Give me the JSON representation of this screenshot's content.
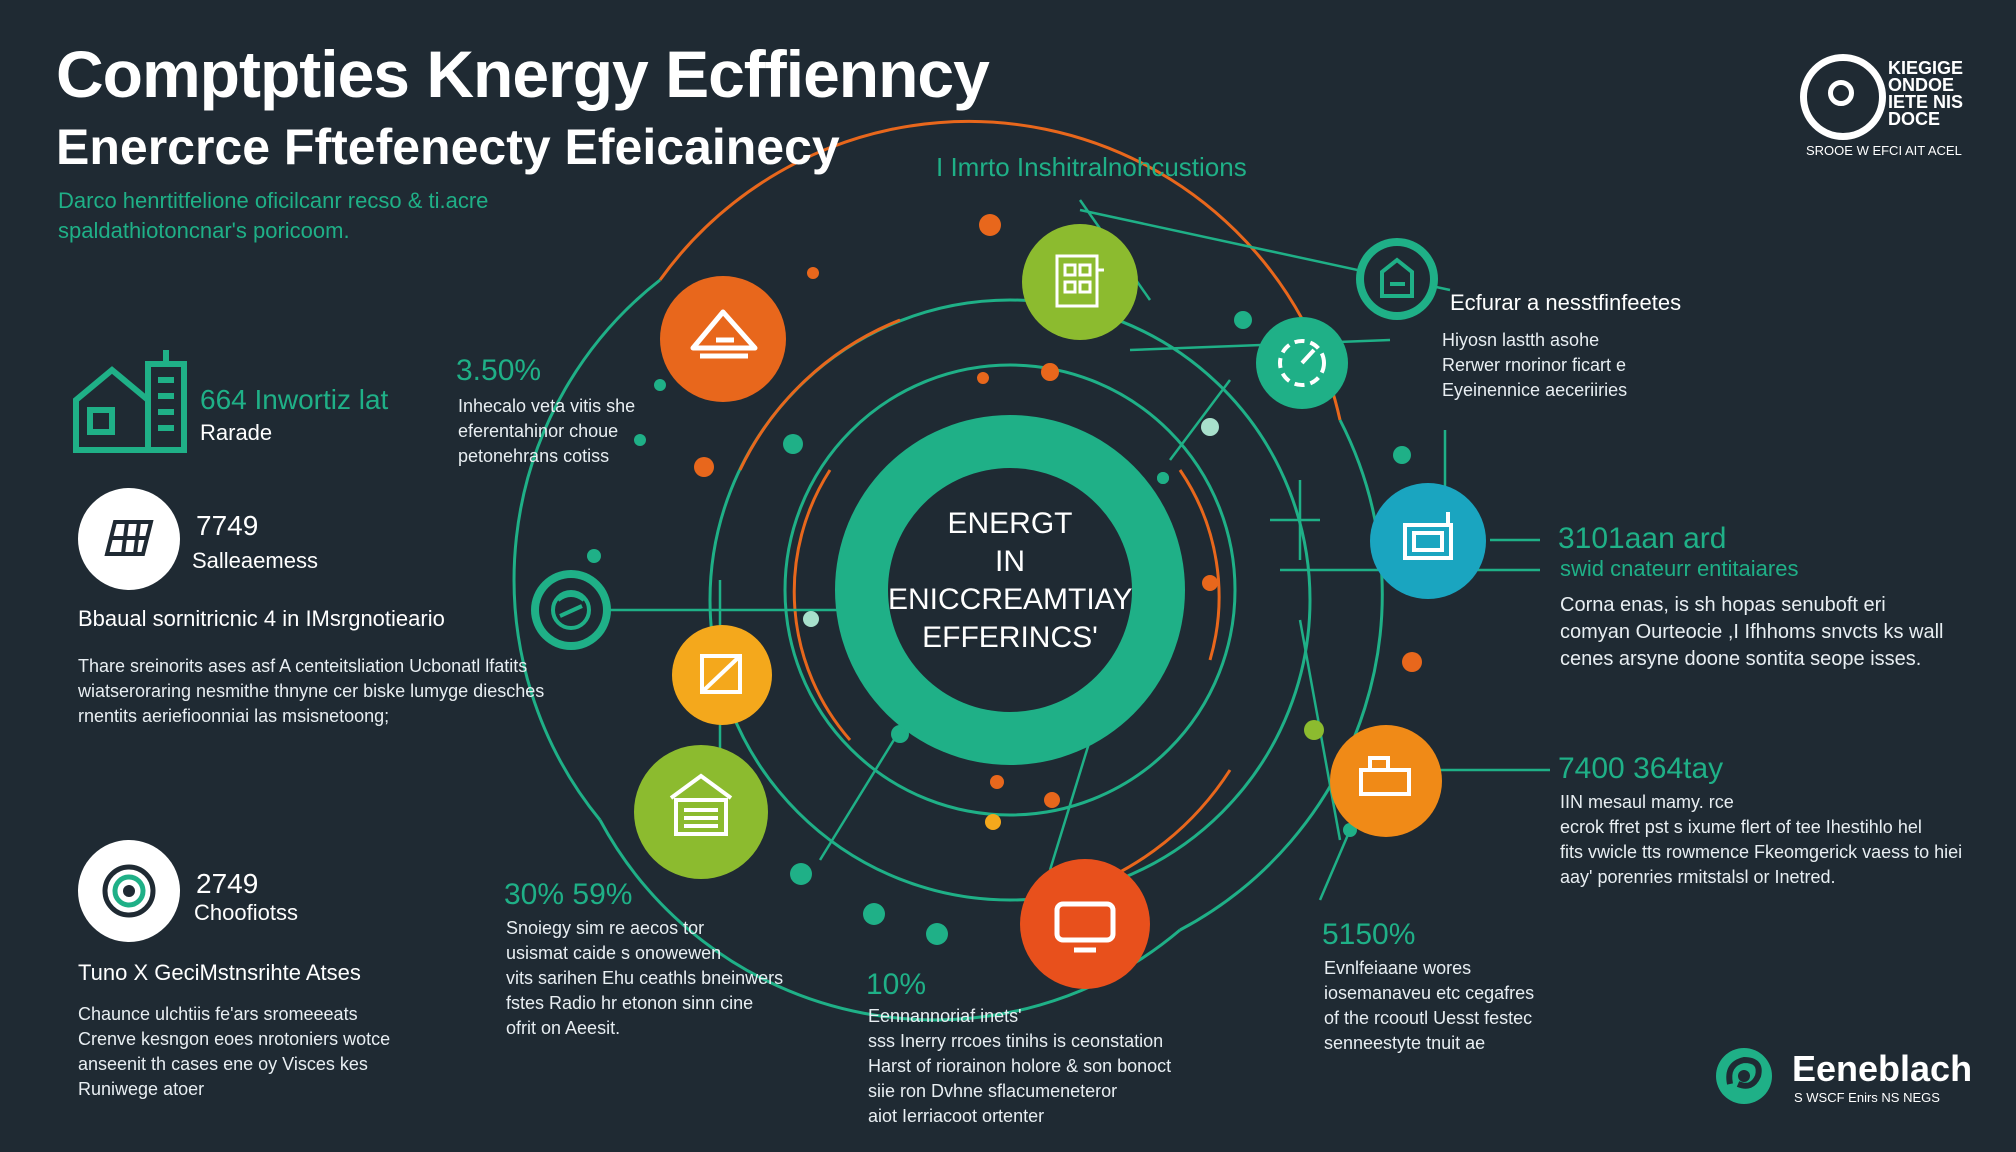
{
  "header": {
    "title_line1": "Comptpties Knergy Ecffienncy",
    "title_line2": "Enercrce Fftefenecty Efeicainecy",
    "tagline": "I Imrto Inshitralnohcustions",
    "subtitle_line1": "Darco henrtitfelione oficilcanr recso & ti.acre",
    "subtitle_line2": "spaldathiotoncnar's poricoom."
  },
  "top_logo": {
    "text_lines": [
      "KIEGIGE",
      "ONDOE",
      "IETE NIS",
      "DOCE"
    ],
    "caption": "SROOE W EFCI AIT ACEL"
  },
  "bottom_logo": {
    "name": "Eeneblach",
    "caption": "S WSCF Enirs NS NEGS"
  },
  "center": {
    "line1": "ENERGT",
    "line2": "IN",
    "line3": "ENICCREAMTIAY",
    "line4": "EFFERINCS'"
  },
  "left_panel": {
    "item1": {
      "value": "664 Inwortiz lat",
      "label": "Rarade"
    },
    "item2": {
      "value": "7749",
      "label": "Salleaemess"
    },
    "section1_heading": "Bbaual sornitricnic 4 in IMsrgnotieario",
    "section1_body": [
      "Thare sreinorits ases asf A centeitsliation Ucbonatl lfatits",
      "wiatseroraring nesmithe thnyne cer biske lumyge diesches",
      "rnentits aeriefioonniai las msisnetoong;"
    ],
    "item3": {
      "value": "2749",
      "label": "Choofiotss"
    },
    "section2_heading": "Tuno X GeciMstnsrihte Atses",
    "section2_body": [
      "Chaunce ulchtiis fe'ars sromeeeats",
      "Crenve kesngon eoes nrotoniers wotce",
      "anseenit th cases ene oy Visces kes",
      "Runiwege atoer"
    ]
  },
  "callouts": {
    "c1": {
      "value": "3.50%",
      "body": [
        "Inhecalo veta vitis she",
        "eferentahinor choue",
        "petonehrans cotiss"
      ]
    },
    "c2": {
      "value": "30% 59%",
      "body": [
        "Snoiegy sim re aecos tor",
        "usismat caide s onowewen",
        "vits sarihen Ehu ceathls bneinwers",
        "fstes Radio hr etonon sinn cine",
        "ofrit on Aeesit."
      ]
    },
    "c3": {
      "value": "10%",
      "body": [
        "Eennannoriaf inets'",
        "sss Inerry rrcoes tinihs is ceonstation",
        "Harst of riorainon holore & son bonoct",
        "siie ron Dvhne sflacumeneteror",
        "aiot Ierriacoot ortenter"
      ]
    },
    "c4": {
      "value": "5150%",
      "body": [
        "Evnlfeiaane wores",
        "iosemanaveu etc cegafres",
        "of the rcooutl Uesst festec",
        "senneestyte tnuit ae"
      ]
    },
    "c5": {
      "value": "7400 364tay",
      "body": [
        "IIN mesaul mamy. rce",
        "ecrok ffret pst s ixume flert of tee Ihestihlo hel",
        "fits vwicle tts rowmence Fkeomgerick vaess to hiei",
        "aay' porenries rmitstalsl or Inetred."
      ]
    },
    "c6": {
      "value": "3101aan ard",
      "label": "swid cnateurr entitaiares",
      "body": [
        "Corna enas, is sh hopas senuboft eri",
        "comyan Ourteocie ,I Ifhhoms snvcts ks wall",
        "cenes arsyne doone sontita seope isses."
      ]
    },
    "c7": {
      "heading": "Ecfurar a nesstfinfeetes",
      "body": [
        "Hiyosn lastth asohe",
        "Rerwer rnorinor ficart e",
        "Eyeinennice aeceriiries"
      ]
    }
  },
  "colors": {
    "background": "#1f2a33",
    "accent_green": "#1fb087",
    "orange": "#e8671c",
    "lime": "#8cbb2f",
    "yellow": "#f4a81c",
    "teal": "#1aa5c0",
    "white": "#ffffff"
  },
  "nodes": [
    {
      "name": "node-orange-house",
      "icon": "house-icon"
    },
    {
      "name": "node-green-building",
      "icon": "building-icon"
    },
    {
      "name": "node-teal-flag",
      "icon": "flag-icon"
    },
    {
      "name": "node-teal-chart",
      "icon": "chart-icon"
    },
    {
      "name": "node-blue-grid",
      "icon": "grid-icon"
    },
    {
      "name": "node-orange-grid",
      "icon": "panel-icon"
    },
    {
      "name": "node-orange-tv",
      "icon": "monitor-icon"
    },
    {
      "name": "node-green-house",
      "icon": "warehouse-icon"
    },
    {
      "name": "node-yellow-square",
      "icon": "square-icon"
    },
    {
      "name": "node-teal-swirl",
      "icon": "swirl-icon"
    }
  ]
}
